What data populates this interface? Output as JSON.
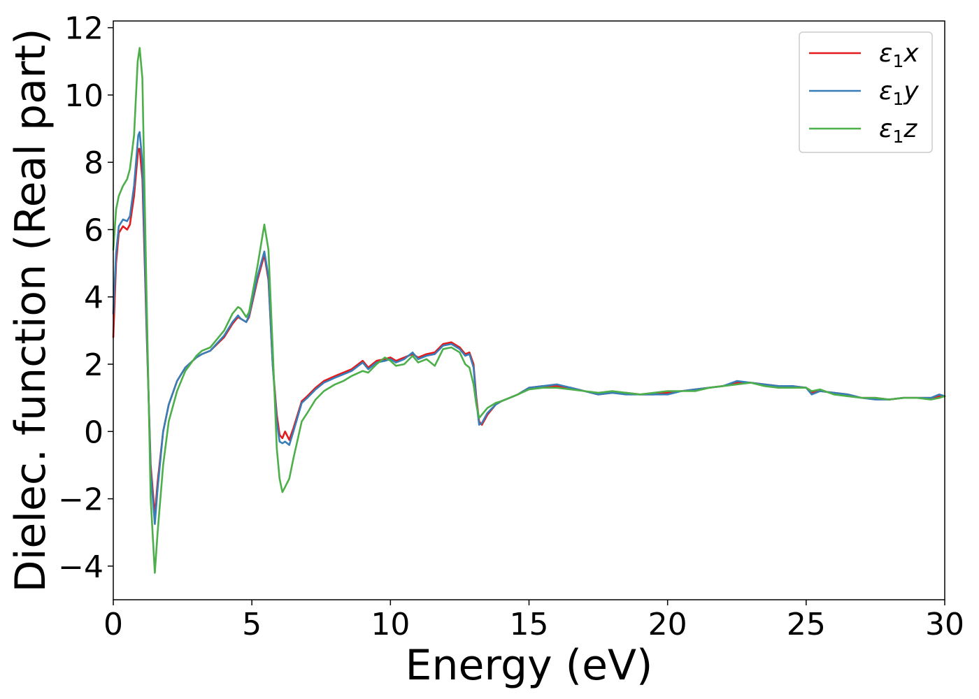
{
  "chart_data": {
    "type": "line",
    "title": "",
    "xlabel": "Energy (eV)",
    "ylabel": "Dielec. function (Real part)",
    "xlim": [
      0,
      30
    ],
    "ylim": [
      -5,
      12.2
    ],
    "xticks": [
      0,
      5,
      10,
      15,
      20,
      25,
      30
    ],
    "xtick_labels": [
      "0",
      "5",
      "10",
      "15",
      "20",
      "25",
      "30"
    ],
    "yticks": [
      -4,
      -2,
      0,
      2,
      4,
      6,
      8,
      10,
      12
    ],
    "ytick_labels": [
      "−4",
      "−2",
      "0",
      "2",
      "4",
      "6",
      "8",
      "10",
      "12"
    ],
    "grid": false,
    "legend": {
      "placement": "top-right",
      "entries": [
        {
          "symbol": "ε",
          "sub": "1",
          "suffix": "x",
          "color": "#e41a1c"
        },
        {
          "symbol": "ε",
          "sub": "1",
          "suffix": "y",
          "color": "#377eb8"
        },
        {
          "symbol": "ε",
          "sub": "1",
          "suffix": "z",
          "color": "#4daf4a"
        }
      ]
    },
    "series": [
      {
        "name": "ε1x",
        "color": "#e41a1c",
        "points": [
          [
            0,
            2.8
          ],
          [
            0.1,
            5.0
          ],
          [
            0.2,
            5.9
          ],
          [
            0.35,
            6.1
          ],
          [
            0.5,
            6.0
          ],
          [
            0.6,
            6.15
          ],
          [
            0.75,
            7.0
          ],
          [
            0.9,
            8.4
          ],
          [
            0.95,
            8.4
          ],
          [
            1.05,
            7.5
          ],
          [
            1.2,
            3.0
          ],
          [
            1.35,
            -1.0
          ],
          [
            1.5,
            -2.5
          ],
          [
            1.6,
            -1.5
          ],
          [
            1.8,
            0.0
          ],
          [
            2.0,
            0.8
          ],
          [
            2.3,
            1.5
          ],
          [
            2.6,
            1.9
          ],
          [
            3.0,
            2.2
          ],
          [
            3.2,
            2.3
          ],
          [
            3.5,
            2.4
          ],
          [
            4.0,
            2.8
          ],
          [
            4.3,
            3.2
          ],
          [
            4.5,
            3.4
          ],
          [
            4.6,
            3.35
          ],
          [
            4.8,
            3.25
          ],
          [
            4.9,
            3.4
          ],
          [
            5.2,
            4.5
          ],
          [
            5.45,
            5.25
          ],
          [
            5.6,
            4.5
          ],
          [
            5.75,
            2.0
          ],
          [
            5.9,
            0.5
          ],
          [
            6.0,
            -0.1
          ],
          [
            6.1,
            -0.2
          ],
          [
            6.2,
            0.0
          ],
          [
            6.35,
            -0.25
          ],
          [
            6.5,
            0.1
          ],
          [
            6.8,
            0.9
          ],
          [
            7.0,
            1.05
          ],
          [
            7.3,
            1.3
          ],
          [
            7.6,
            1.5
          ],
          [
            8.0,
            1.65
          ],
          [
            8.3,
            1.75
          ],
          [
            8.6,
            1.85
          ],
          [
            9.0,
            2.1
          ],
          [
            9.2,
            1.9
          ],
          [
            9.5,
            2.1
          ],
          [
            9.8,
            2.15
          ],
          [
            10.0,
            2.2
          ],
          [
            10.2,
            2.1
          ],
          [
            10.5,
            2.2
          ],
          [
            10.8,
            2.3
          ],
          [
            11.0,
            2.2
          ],
          [
            11.3,
            2.3
          ],
          [
            11.6,
            2.35
          ],
          [
            11.9,
            2.6
          ],
          [
            12.2,
            2.65
          ],
          [
            12.5,
            2.5
          ],
          [
            12.7,
            2.3
          ],
          [
            12.85,
            2.35
          ],
          [
            13.0,
            2.0
          ],
          [
            13.1,
            1.0
          ],
          [
            13.2,
            0.3
          ],
          [
            13.3,
            0.2
          ],
          [
            13.5,
            0.5
          ],
          [
            13.8,
            0.8
          ],
          [
            14.0,
            0.9
          ],
          [
            14.3,
            1.0
          ],
          [
            14.6,
            1.1
          ],
          [
            15.0,
            1.3
          ],
          [
            15.5,
            1.35
          ],
          [
            16.0,
            1.35
          ],
          [
            16.5,
            1.3
          ],
          [
            17.0,
            1.2
          ],
          [
            17.5,
            1.1
          ],
          [
            18.0,
            1.15
          ],
          [
            18.5,
            1.15
          ],
          [
            19.0,
            1.1
          ],
          [
            19.5,
            1.1
          ],
          [
            20.0,
            1.15
          ],
          [
            20.5,
            1.2
          ],
          [
            21.0,
            1.25
          ],
          [
            21.5,
            1.3
          ],
          [
            22.0,
            1.35
          ],
          [
            22.5,
            1.45
          ],
          [
            23.0,
            1.45
          ],
          [
            23.5,
            1.4
          ],
          [
            24.0,
            1.35
          ],
          [
            24.5,
            1.35
          ],
          [
            25.0,
            1.3
          ],
          [
            25.2,
            1.15
          ],
          [
            25.5,
            1.2
          ],
          [
            26.0,
            1.15
          ],
          [
            26.5,
            1.1
          ],
          [
            27.0,
            1.0
          ],
          [
            27.5,
            1.0
          ],
          [
            28.0,
            0.95
          ],
          [
            28.5,
            1.0
          ],
          [
            29.0,
            1.0
          ],
          [
            29.5,
            1.0
          ],
          [
            29.8,
            1.05
          ],
          [
            30.0,
            1.05
          ]
        ]
      },
      {
        "name": "ε1y",
        "color": "#377eb8",
        "points": [
          [
            0,
            3.5
          ],
          [
            0.1,
            5.3
          ],
          [
            0.2,
            6.1
          ],
          [
            0.35,
            6.3
          ],
          [
            0.5,
            6.25
          ],
          [
            0.6,
            6.4
          ],
          [
            0.75,
            7.3
          ],
          [
            0.9,
            8.8
          ],
          [
            0.95,
            8.9
          ],
          [
            1.05,
            8.0
          ],
          [
            1.2,
            3.2
          ],
          [
            1.35,
            -1.2
          ],
          [
            1.5,
            -2.75
          ],
          [
            1.6,
            -1.7
          ],
          [
            1.8,
            0.0
          ],
          [
            2.0,
            0.8
          ],
          [
            2.3,
            1.5
          ],
          [
            2.6,
            1.9
          ],
          [
            3.0,
            2.2
          ],
          [
            3.2,
            2.3
          ],
          [
            3.5,
            2.4
          ],
          [
            4.0,
            2.85
          ],
          [
            4.3,
            3.25
          ],
          [
            4.5,
            3.45
          ],
          [
            4.6,
            3.35
          ],
          [
            4.8,
            3.25
          ],
          [
            4.9,
            3.45
          ],
          [
            5.2,
            4.6
          ],
          [
            5.45,
            5.35
          ],
          [
            5.6,
            4.6
          ],
          [
            5.75,
            2.0
          ],
          [
            5.9,
            0.3
          ],
          [
            6.0,
            -0.3
          ],
          [
            6.1,
            -0.35
          ],
          [
            6.2,
            -0.3
          ],
          [
            6.35,
            -0.4
          ],
          [
            6.5,
            0.0
          ],
          [
            6.8,
            0.85
          ],
          [
            7.0,
            1.0
          ],
          [
            7.3,
            1.25
          ],
          [
            7.6,
            1.45
          ],
          [
            8.0,
            1.6
          ],
          [
            8.3,
            1.7
          ],
          [
            8.6,
            1.8
          ],
          [
            9.0,
            2.05
          ],
          [
            9.2,
            1.85
          ],
          [
            9.5,
            2.05
          ],
          [
            9.8,
            2.1
          ],
          [
            10.0,
            2.15
          ],
          [
            10.2,
            2.05
          ],
          [
            10.5,
            2.15
          ],
          [
            10.8,
            2.35
          ],
          [
            11.0,
            2.15
          ],
          [
            11.3,
            2.25
          ],
          [
            11.6,
            2.3
          ],
          [
            11.9,
            2.55
          ],
          [
            12.2,
            2.6
          ],
          [
            12.5,
            2.45
          ],
          [
            12.7,
            2.25
          ],
          [
            12.85,
            2.3
          ],
          [
            13.0,
            1.9
          ],
          [
            13.1,
            0.9
          ],
          [
            13.2,
            0.2
          ],
          [
            13.3,
            0.25
          ],
          [
            13.5,
            0.55
          ],
          [
            13.8,
            0.8
          ],
          [
            14.0,
            0.9
          ],
          [
            14.3,
            1.0
          ],
          [
            14.6,
            1.1
          ],
          [
            15.0,
            1.3
          ],
          [
            15.5,
            1.35
          ],
          [
            16.0,
            1.4
          ],
          [
            16.5,
            1.3
          ],
          [
            17.0,
            1.2
          ],
          [
            17.5,
            1.1
          ],
          [
            18.0,
            1.15
          ],
          [
            18.5,
            1.1
          ],
          [
            19.0,
            1.1
          ],
          [
            19.5,
            1.1
          ],
          [
            20.0,
            1.1
          ],
          [
            20.5,
            1.2
          ],
          [
            21.0,
            1.25
          ],
          [
            21.5,
            1.3
          ],
          [
            22.0,
            1.35
          ],
          [
            22.5,
            1.5
          ],
          [
            23.0,
            1.45
          ],
          [
            23.5,
            1.4
          ],
          [
            24.0,
            1.35
          ],
          [
            24.5,
            1.35
          ],
          [
            25.0,
            1.3
          ],
          [
            25.2,
            1.1
          ],
          [
            25.5,
            1.2
          ],
          [
            26.0,
            1.15
          ],
          [
            26.5,
            1.1
          ],
          [
            27.0,
            1.0
          ],
          [
            27.5,
            0.95
          ],
          [
            28.0,
            0.95
          ],
          [
            28.5,
            1.0
          ],
          [
            29.0,
            1.0
          ],
          [
            29.5,
            1.0
          ],
          [
            29.8,
            1.1
          ],
          [
            30.0,
            1.05
          ]
        ]
      },
      {
        "name": "ε1z",
        "color": "#4daf4a",
        "points": [
          [
            0,
            5.4
          ],
          [
            0.1,
            6.6
          ],
          [
            0.2,
            7.0
          ],
          [
            0.35,
            7.3
          ],
          [
            0.5,
            7.5
          ],
          [
            0.6,
            7.8
          ],
          [
            0.75,
            8.8
          ],
          [
            0.88,
            11.0
          ],
          [
            0.95,
            11.4
          ],
          [
            1.05,
            10.5
          ],
          [
            1.2,
            4.0
          ],
          [
            1.35,
            -2.0
          ],
          [
            1.5,
            -4.2
          ],
          [
            1.6,
            -3.0
          ],
          [
            1.8,
            -1.0
          ],
          [
            2.0,
            0.3
          ],
          [
            2.3,
            1.2
          ],
          [
            2.6,
            1.8
          ],
          [
            3.0,
            2.25
          ],
          [
            3.2,
            2.4
          ],
          [
            3.5,
            2.5
          ],
          [
            4.0,
            3.0
          ],
          [
            4.3,
            3.5
          ],
          [
            4.5,
            3.7
          ],
          [
            4.6,
            3.65
          ],
          [
            4.8,
            3.4
          ],
          [
            4.9,
            3.55
          ],
          [
            5.2,
            4.9
          ],
          [
            5.45,
            6.15
          ],
          [
            5.6,
            5.4
          ],
          [
            5.75,
            2.5
          ],
          [
            5.9,
            -0.5
          ],
          [
            6.0,
            -1.4
          ],
          [
            6.1,
            -1.8
          ],
          [
            6.2,
            -1.65
          ],
          [
            6.35,
            -1.4
          ],
          [
            6.5,
            -0.8
          ],
          [
            6.8,
            0.3
          ],
          [
            7.0,
            0.55
          ],
          [
            7.3,
            0.95
          ],
          [
            7.6,
            1.2
          ],
          [
            8.0,
            1.4
          ],
          [
            8.3,
            1.5
          ],
          [
            8.6,
            1.65
          ],
          [
            9.0,
            1.8
          ],
          [
            9.2,
            1.75
          ],
          [
            9.5,
            2.0
          ],
          [
            9.8,
            2.2
          ],
          [
            10.0,
            2.1
          ],
          [
            10.2,
            1.95
          ],
          [
            10.5,
            2.0
          ],
          [
            10.8,
            2.25
          ],
          [
            11.0,
            2.05
          ],
          [
            11.3,
            2.15
          ],
          [
            11.6,
            1.95
          ],
          [
            11.9,
            2.45
          ],
          [
            12.2,
            2.5
          ],
          [
            12.5,
            2.35
          ],
          [
            12.7,
            2.0
          ],
          [
            12.85,
            1.9
          ],
          [
            13.0,
            1.4
          ],
          [
            13.1,
            0.8
          ],
          [
            13.2,
            0.4
          ],
          [
            13.3,
            0.5
          ],
          [
            13.5,
            0.7
          ],
          [
            13.8,
            0.85
          ],
          [
            14.0,
            0.9
          ],
          [
            14.3,
            1.0
          ],
          [
            14.6,
            1.1
          ],
          [
            15.0,
            1.25
          ],
          [
            15.5,
            1.3
          ],
          [
            16.0,
            1.3
          ],
          [
            16.5,
            1.25
          ],
          [
            17.0,
            1.2
          ],
          [
            17.5,
            1.15
          ],
          [
            18.0,
            1.2
          ],
          [
            18.5,
            1.15
          ],
          [
            19.0,
            1.1
          ],
          [
            19.5,
            1.15
          ],
          [
            20.0,
            1.2
          ],
          [
            20.5,
            1.2
          ],
          [
            21.0,
            1.2
          ],
          [
            21.5,
            1.3
          ],
          [
            22.0,
            1.35
          ],
          [
            22.5,
            1.4
          ],
          [
            23.0,
            1.45
          ],
          [
            23.5,
            1.35
          ],
          [
            24.0,
            1.3
          ],
          [
            24.5,
            1.3
          ],
          [
            25.0,
            1.3
          ],
          [
            25.2,
            1.2
          ],
          [
            25.5,
            1.25
          ],
          [
            26.0,
            1.1
          ],
          [
            26.5,
            1.05
          ],
          [
            27.0,
            1.0
          ],
          [
            27.5,
            1.0
          ],
          [
            28.0,
            0.95
          ],
          [
            28.5,
            1.0
          ],
          [
            29.0,
            1.0
          ],
          [
            29.5,
            0.95
          ],
          [
            29.8,
            1.0
          ],
          [
            30.0,
            1.05
          ]
        ]
      }
    ]
  }
}
